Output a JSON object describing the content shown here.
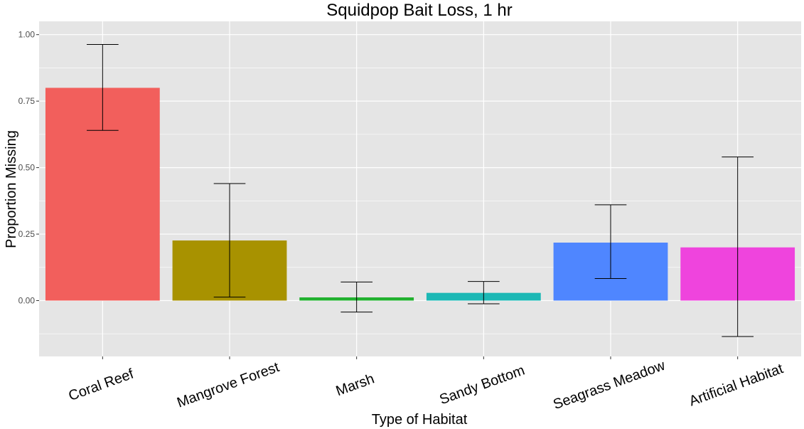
{
  "chart_data": {
    "type": "bar",
    "title": "Squidpop Bait Loss, 1 hr",
    "xlabel": "Type of Habitat",
    "ylabel": "Proportion Missing",
    "categories": [
      "Coral Reef",
      "Mangrove Forest",
      "Marsh",
      "Sandy Bottom",
      "Seagrass Meadow",
      "Artificial Habitat"
    ],
    "values": [
      0.8,
      0.226,
      0.012,
      0.029,
      0.218,
      0.2
    ],
    "error_bars": {
      "lower": [
        0.64,
        0.013,
        -0.043,
        -0.012,
        0.083,
        -0.135
      ],
      "upper": [
        0.963,
        0.44,
        0.07,
        0.072,
        0.36,
        0.54
      ]
    },
    "colors": [
      "#F25F5C",
      "#A89200",
      "#21B12F",
      "#1CB8B5",
      "#4F86FF",
      "#EF44DD"
    ],
    "yticks": [
      "0.00",
      "0.25",
      "0.50",
      "0.75",
      "1.00"
    ],
    "ylim": [
      -0.21,
      1.05
    ],
    "grid": true,
    "legend": "none",
    "panel_color": "#e5e5e5",
    "grid_color": "#ffffff"
  }
}
